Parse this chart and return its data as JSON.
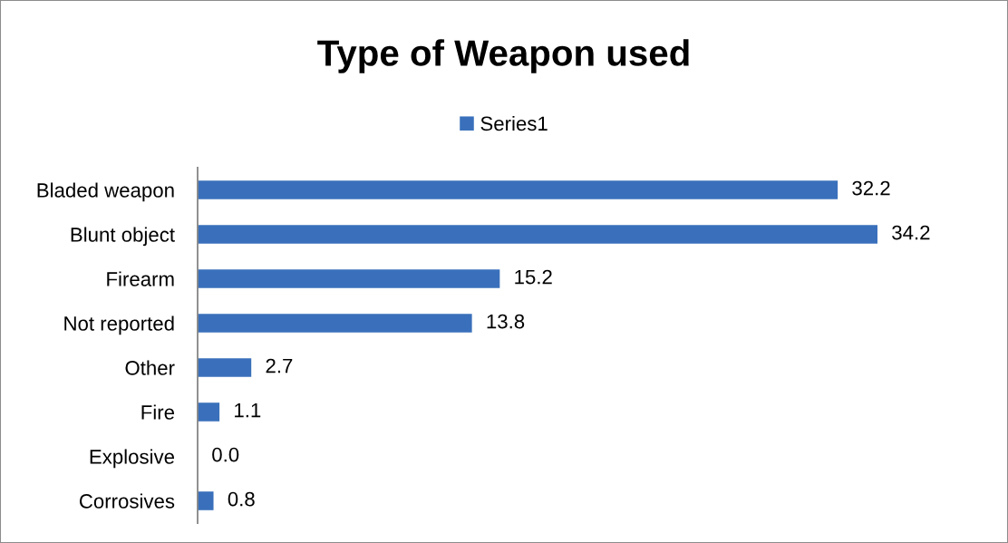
{
  "chart_data": {
    "type": "bar",
    "title": "Type of Weapon used",
    "orientation": "horizontal",
    "categories": [
      "Bladed weapon",
      "Blunt object",
      "Firearm",
      "Not reported",
      "Other",
      "Fire",
      "Explosive",
      "Corrosives"
    ],
    "series": [
      {
        "name": "Series1",
        "color": "#3a70bb",
        "values": [
          32.2,
          34.2,
          15.2,
          13.8,
          2.7,
          1.1,
          0.0,
          0.8
        ],
        "value_labels": [
          "32.2",
          "34.2",
          "15.2",
          "13.8",
          "2.7",
          "1.1",
          "0.0",
          "0.8"
        ]
      }
    ],
    "legend": "top",
    "tick_labels": "y"
  }
}
